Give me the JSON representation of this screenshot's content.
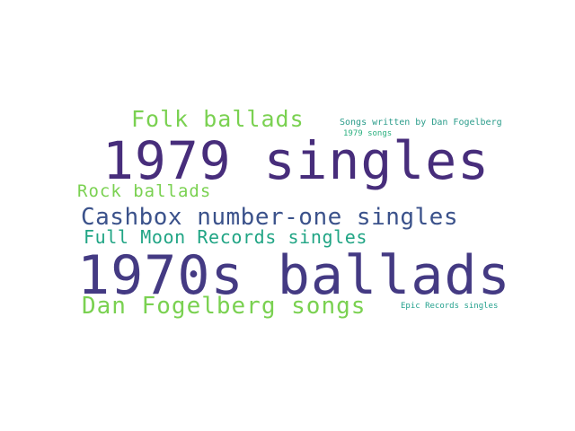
{
  "word_cloud": {
    "words": [
      {
        "id": "1979-singles",
        "text": "1979 singles",
        "color": "#472d7b"
      },
      {
        "id": "1970s-ballads",
        "text": "1970s ballads",
        "color": "#443a83"
      },
      {
        "id": "folk",
        "text": "Folk ballads",
        "color": "#7ad151"
      },
      {
        "id": "rock",
        "text": "Rock ballads",
        "color": "#7ad151"
      },
      {
        "id": "cashbox",
        "text": "Cashbox number-one singles",
        "color": "#3b528b"
      },
      {
        "id": "fullmoon",
        "text": "Full Moon Records singles",
        "color": "#21a585"
      },
      {
        "id": "dfsongs",
        "text": "Dan Fogelberg songs",
        "color": "#7ad151"
      },
      {
        "id": "written",
        "text": "Songs written by Dan Fogelberg",
        "color": "#2a9c8a"
      },
      {
        "id": "1979songs",
        "text": "1979 songs",
        "color": "#2ab07f"
      },
      {
        "id": "epic",
        "text": "Epic Records singles",
        "color": "#25a18e"
      }
    ]
  }
}
